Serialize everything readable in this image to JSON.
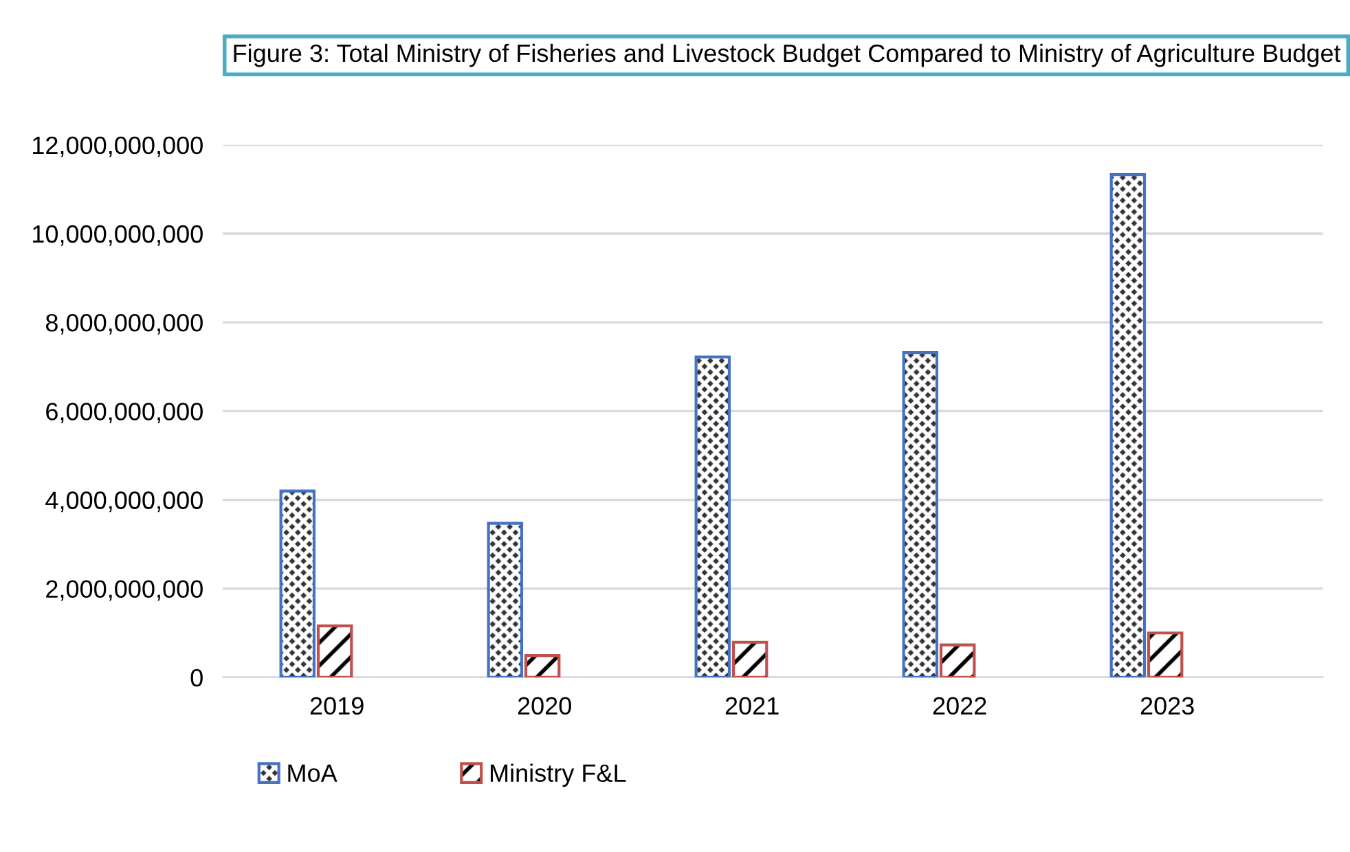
{
  "chart_data": {
    "type": "bar",
    "title": "Figure 3: Total Ministry of Fisheries and Livestock Budget Compared to Ministry of Agriculture Budget",
    "categories": [
      "2019",
      "2020",
      "2021",
      "2022",
      "2023"
    ],
    "series": [
      {
        "name": "MoA",
        "color": "#4472c4",
        "values": [
          4200000000,
          3470000000,
          7220000000,
          7320000000,
          11330000000
        ]
      },
      {
        "name": "Ministry F&L",
        "color": "#c0504d",
        "values": [
          1160000000,
          490000000,
          790000000,
          730000000,
          1000000000
        ]
      }
    ],
    "ylim": [
      0,
      12000000000
    ],
    "yticks": [
      {
        "value": 0,
        "label": "0"
      },
      {
        "value": 2000000000,
        "label": "2,000,000,000"
      },
      {
        "value": 4000000000,
        "label": "4,000,000,000"
      },
      {
        "value": 6000000000,
        "label": "6,000,000,000"
      },
      {
        "value": 8000000000,
        "label": "8,000,000,000"
      },
      {
        "value": 10000000000,
        "label": "10,000,000,000"
      },
      {
        "value": 12000000000,
        "label": "12,000,000,000"
      }
    ],
    "grid": "y",
    "legend": "bottom"
  }
}
